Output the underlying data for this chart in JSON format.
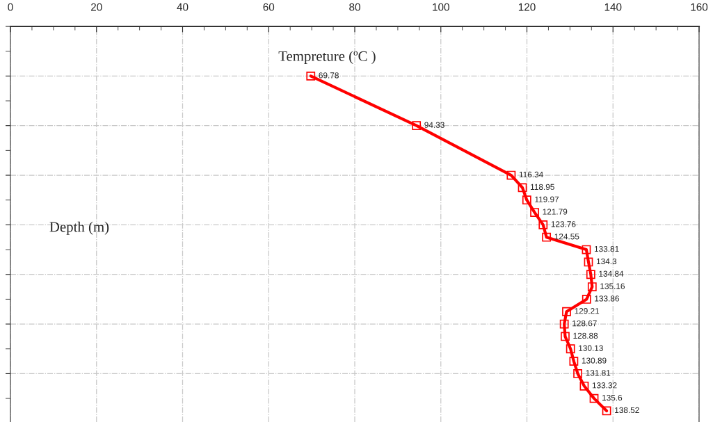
{
  "chart_data": {
    "type": "line",
    "orientation": "horizontal",
    "xlabel": "Tempreture (ºC )",
    "ylabel": "Depth (m)",
    "categories": [
      null,
      null,
      null,
      null,
      null,
      null,
      null,
      null,
      null,
      null,
      null,
      null,
      null,
      null,
      null,
      null,
      null,
      null,
      null,
      null,
      null,
      null,
      null,
      null,
      null,
      null,
      null,
      null,
      null,
      null,
      null,
      null
    ],
    "series": [
      {
        "color": "#ff0000",
        "values": [
          null,
          null,
          null,
          null,
          69.78,
          null,
          null,
          null,
          94.33,
          null,
          null,
          null,
          116.34,
          118.95,
          119.97,
          121.79,
          123.76,
          124.55,
          133.81,
          134.3,
          134.84,
          135.16,
          133.86,
          129.21,
          128.67,
          128.88,
          130.13,
          130.89,
          131.81,
          133.32,
          135.6,
          138.52
        ]
      }
    ],
    "xlim": [
      0,
      160
    ],
    "xticks": [
      0,
      20,
      40,
      60,
      80,
      100,
      120,
      140,
      160
    ],
    "data_labels": true,
    "marker": "square",
    "line_style": "solid",
    "grid": true,
    "tick_labels": "x"
  }
}
